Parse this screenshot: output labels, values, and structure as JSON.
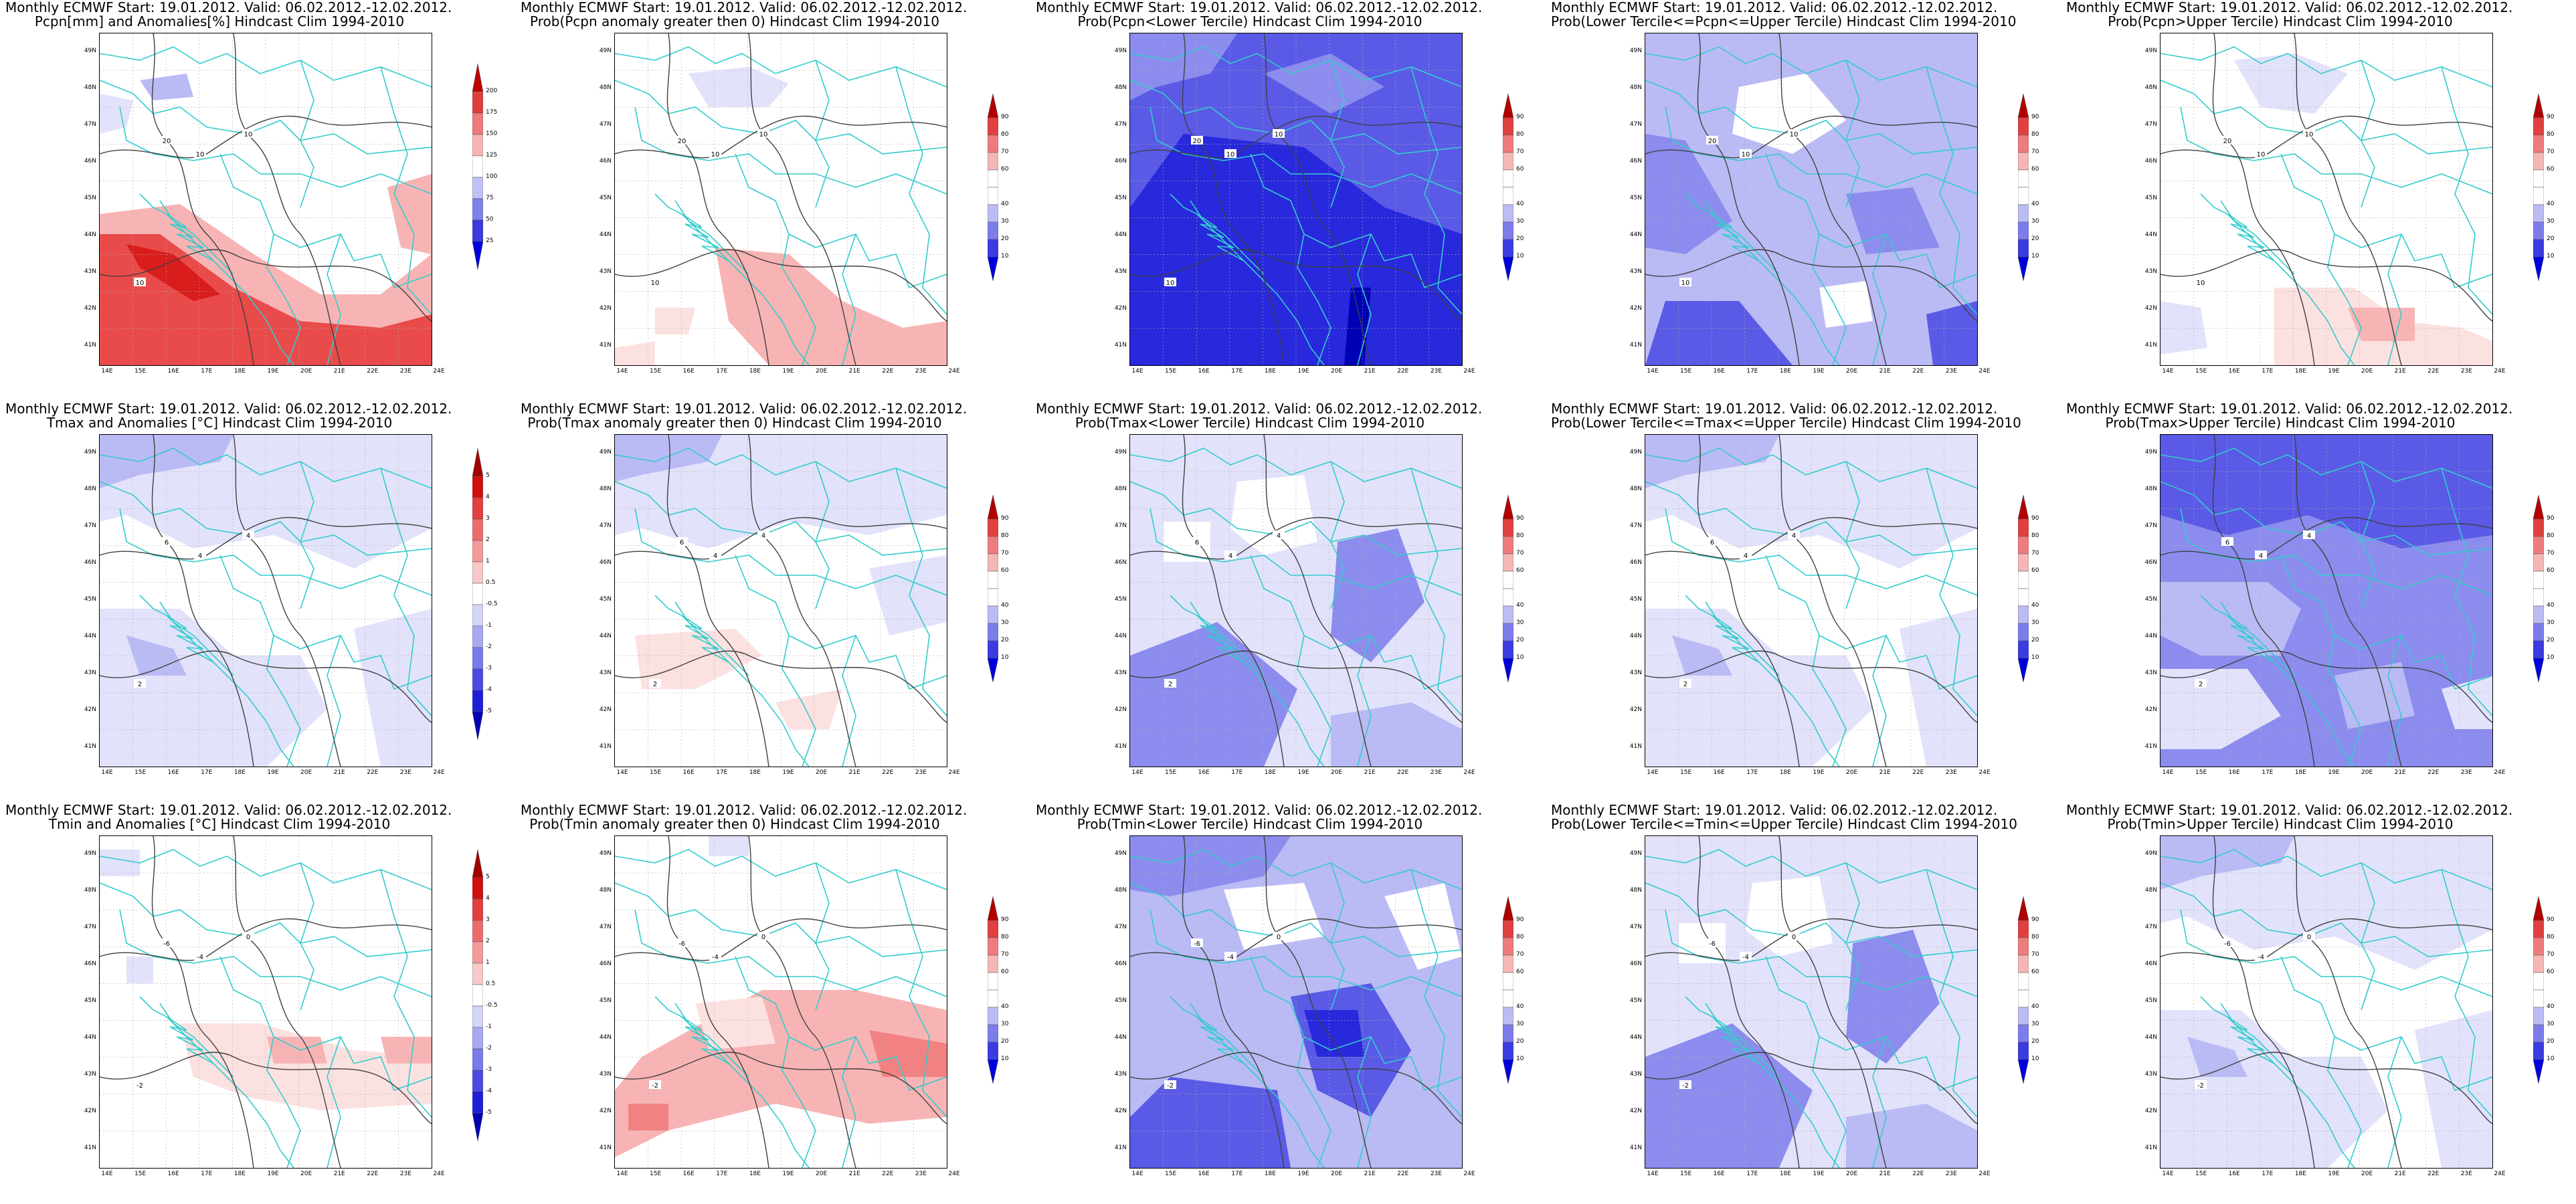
{
  "header_common": "Monthly ECMWF Start: 19.01.2012. Valid: 06.02.2012.-12.02.2012.",
  "lat_labels": [
    "49N",
    "48N",
    "47N",
    "46N",
    "45N",
    "44N",
    "43N",
    "42N",
    "41N"
  ],
  "lon_labels": [
    "14E",
    "15E",
    "16E",
    "17E",
    "18E",
    "19E",
    "20E",
    "21E",
    "22E",
    "23E",
    "24E"
  ],
  "colors": {
    "red_scale": [
      "#fce1e1",
      "#f8b4b4",
      "#f28282",
      "#e94a4a",
      "#d91c1c",
      "#b00000"
    ],
    "blue_scale": [
      "#e2e2fb",
      "#babaf5",
      "#8c8cee",
      "#5a5ae6",
      "#2828dc",
      "#0000b4"
    ],
    "coast_color": "#33cccc",
    "contour_color": "#404040",
    "cbar_anom_precip": [
      "#0000dd",
      "#3a3ae0",
      "#8181ec",
      "#c1c1f6",
      "#ffffff",
      "#f7b3b3",
      "#ef7a7a",
      "#e03e3e",
      "#bf0000"
    ],
    "cbar_anom_temp": [
      "#0000b4",
      "#1e1ed9",
      "#4b4be3",
      "#7a7aeb",
      "#a9a9f2",
      "#d4d4f9",
      "#ffffff",
      "#f8c9c9",
      "#f29a9a",
      "#ec6c6c",
      "#e53e3e",
      "#d01010",
      "#a00000"
    ],
    "cbar_prob": [
      "#0000dd",
      "#3b3be2",
      "#7c7ceb",
      "#bcbcf5",
      "#ffffff",
      "#ffffff",
      "#f6b6b6",
      "#ee7c7c",
      "#e04040",
      "#b00000"
    ]
  },
  "colorbars": {
    "precip": {
      "labels": [
        "25",
        "50",
        "75",
        "100",
        "125",
        "150",
        "175",
        "200"
      ]
    },
    "temp": {
      "labels": [
        "-5",
        "-4",
        "-3",
        "-2",
        "-1",
        "-0.5",
        "0.5",
        "1",
        "2",
        "3",
        "4",
        "5"
      ]
    },
    "prob": {
      "labels": [
        "10",
        "20",
        "30",
        "40",
        "60",
        "70",
        "80",
        "90"
      ]
    }
  },
  "panels": [
    {
      "line2": "Pcpn[mm] and Anomalies[%] Hindcast Clim 1994-2010",
      "cbar": "precip",
      "fill_scheme": "red_anom_precip",
      "contours": [
        "10",
        "10",
        "10",
        "20"
      ]
    },
    {
      "line2": "Prob(Pcpn anomaly greater then 0) Hindcast Clim 1994-2010",
      "cbar": "prob",
      "fill_scheme": "red_light_south",
      "contours": [
        "10",
        "10",
        "10",
        "20"
      ]
    },
    {
      "line2": "Prob(Pcpn<Lower Tercile) Hindcast Clim 1994-2010",
      "cbar": "prob",
      "fill_scheme": "blue_deep",
      "contours": [
        "10",
        "10",
        "10",
        "20"
      ]
    },
    {
      "line2": "Prob(Lower Tercile<=Pcpn<=Upper Tercile) Hindcast Clim 1994-2010",
      "cbar": "prob",
      "fill_scheme": "blue_mixed",
      "contours": [
        "10",
        "10",
        "10",
        "20"
      ]
    },
    {
      "line2": "Prob(Pcpn>Upper Tercile) Hindcast Clim 1994-2010",
      "cbar": "prob",
      "fill_scheme": "light_south_red",
      "contours": [
        "10",
        "10",
        "10",
        "20"
      ]
    },
    {
      "line2": "Tmax and Anomalies [°C] Hindcast Clim 1994-2010",
      "cbar": "temp",
      "fill_scheme": "blue_light",
      "contours": [
        "2",
        "4",
        "4",
        "6"
      ]
    },
    {
      "line2": "Prob(Tmax anomaly greater then 0) Hindcast Clim 1994-2010",
      "cbar": "prob",
      "fill_scheme": "blue_light_red",
      "contours": [
        "2",
        "4",
        "4",
        "6"
      ]
    },
    {
      "line2": "Prob(Tmax<Lower Tercile) Hindcast Clim 1994-2010",
      "cbar": "prob",
      "fill_scheme": "blue_medium",
      "contours": [
        "2",
        "4",
        "4",
        "6"
      ]
    },
    {
      "line2": "Prob(Lower Tercile<=Tmax<=Upper Tercile) Hindcast Clim 1994-2010",
      "cbar": "prob",
      "fill_scheme": "blue_light",
      "contours": [
        "2",
        "4",
        "4",
        "6"
      ]
    },
    {
      "line2": "Prob(Tmax>Upper Tercile) Hindcast Clim 1994-2010",
      "cbar": "prob",
      "fill_scheme": "blue_strong",
      "contours": [
        "2",
        "4",
        "4",
        "6"
      ]
    },
    {
      "line2": "Tmin and Anomalies [°C] Hindcast Clim 1994-2010",
      "cbar": "temp",
      "fill_scheme": "red_light",
      "contours": [
        "-2",
        "-4",
        "0",
        "-6"
      ]
    },
    {
      "line2": "Prob(Tmin anomaly greater then 0) Hindcast Clim 1994-2010",
      "cbar": "prob",
      "fill_scheme": "red_medium",
      "contours": [
        "-2",
        "-4",
        "0",
        "-6"
      ]
    },
    {
      "line2": "Prob(Tmin<Lower Tercile) Hindcast Clim 1994-2010",
      "cbar": "prob",
      "fill_scheme": "blue_medium_deep",
      "contours": [
        "-2",
        "-4",
        "0",
        "-6"
      ]
    },
    {
      "line2": "Prob(Lower Tercile<=Tmin<=Upper Tercile) Hindcast Clim 1994-2010",
      "cbar": "prob",
      "fill_scheme": "blue_medium",
      "contours": [
        "-2",
        "-4",
        "0",
        "-6"
      ]
    },
    {
      "line2": "Prob(Tmin>Upper Tercile) Hindcast Clim 1994-2010",
      "cbar": "prob",
      "fill_scheme": "blue_light",
      "contours": [
        "-2",
        "-4",
        "0",
        "-6"
      ]
    }
  ]
}
